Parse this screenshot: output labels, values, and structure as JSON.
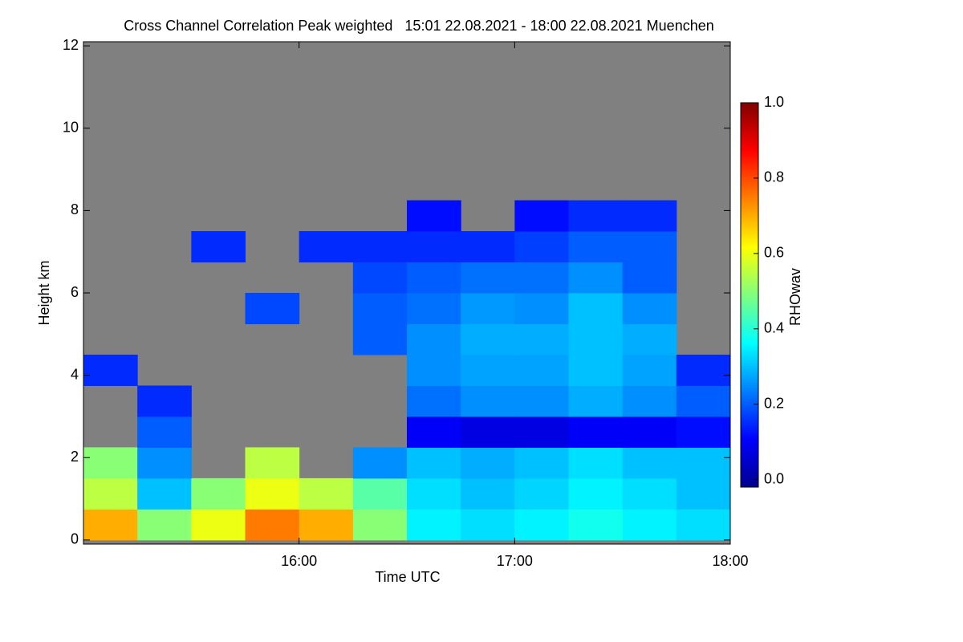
{
  "chart_data": {
    "type": "heatmap",
    "title": "Cross Channel Correlation Peak weighted   15:01 22.08.2021 - 18:00 22.08.2021 Muenchen",
    "x_label": "Time UTC",
    "y_label": "Height km",
    "colorbar_label": "RHOwav",
    "x": [
      15,
      15.25,
      15.5,
      15.75,
      16,
      16.25,
      16.5,
      16.75,
      17,
      17.25,
      17.5,
      17.75,
      18
    ],
    "y": [
      0,
      0.75,
      1.5,
      2.25,
      3,
      3.75,
      4.5,
      5.25,
      6,
      6.75,
      7.5,
      8.25,
      9,
      9.75,
      10.5,
      11.25,
      12
    ],
    "z": [
      [
        0.7,
        0.5,
        0.6,
        0.75,
        0.7,
        0.5,
        0.35,
        0.33,
        0.35,
        0.38,
        0.35,
        0.33
      ],
      [
        0.55,
        0.3,
        0.5,
        0.6,
        0.55,
        0.45,
        0.33,
        0.3,
        0.32,
        0.35,
        0.33,
        0.3
      ],
      [
        0.5,
        0.25,
        null,
        0.55,
        null,
        0.25,
        0.3,
        0.28,
        0.3,
        0.33,
        0.3,
        0.3
      ],
      [
        null,
        0.2,
        null,
        null,
        null,
        null,
        0.1,
        0.08,
        0.08,
        0.1,
        0.1,
        0.12
      ],
      [
        null,
        0.15,
        null,
        null,
        null,
        null,
        0.22,
        0.25,
        0.25,
        0.28,
        0.25,
        0.2
      ],
      [
        0.15,
        null,
        null,
        null,
        null,
        null,
        0.25,
        0.27,
        0.27,
        0.3,
        0.27,
        0.15
      ],
      [
        null,
        null,
        null,
        null,
        null,
        0.2,
        0.25,
        0.28,
        0.28,
        0.3,
        0.28,
        null
      ],
      [
        null,
        null,
        null,
        0.18,
        null,
        0.2,
        0.22,
        0.26,
        0.25,
        0.3,
        0.25,
        null
      ],
      [
        null,
        null,
        null,
        null,
        null,
        0.18,
        0.2,
        0.22,
        0.22,
        0.25,
        0.2,
        null
      ],
      [
        null,
        null,
        0.15,
        null,
        0.15,
        0.15,
        0.15,
        0.15,
        0.17,
        0.2,
        0.2,
        null
      ],
      [
        null,
        null,
        null,
        null,
        null,
        null,
        0.12,
        null,
        0.12,
        0.15,
        0.15,
        null
      ],
      [
        null,
        null,
        null,
        null,
        null,
        null,
        null,
        null,
        null,
        null,
        null,
        null
      ],
      [
        null,
        null,
        null,
        null,
        null,
        null,
        null,
        null,
        null,
        null,
        null,
        null
      ],
      [
        null,
        null,
        null,
        null,
        null,
        null,
        null,
        null,
        null,
        null,
        null,
        null
      ],
      [
        null,
        null,
        null,
        null,
        null,
        null,
        null,
        null,
        null,
        null,
        null,
        null
      ],
      [
        null,
        null,
        null,
        null,
        null,
        null,
        null,
        null,
        null,
        null,
        null,
        null
      ]
    ],
    "xlim": [
      15,
      18
    ],
    "ylim": [
      -0.1,
      12.1
    ],
    "zlim": [
      -0.02,
      1.0
    ],
    "xticks": [
      {
        "value": 16,
        "label": "16:00"
      },
      {
        "value": 17,
        "label": "17:00"
      },
      {
        "value": 18,
        "label": "18:00"
      }
    ],
    "yticks": [
      0,
      2,
      4,
      6,
      8,
      10,
      12
    ],
    "zticks": [
      {
        "value": 0,
        "label": "0.0"
      },
      {
        "value": 0.2,
        "label": "0.2"
      },
      {
        "value": 0.4,
        "label": "0.4"
      },
      {
        "value": 0.6,
        "label": "0.6"
      },
      {
        "value": 0.8,
        "label": "0.8"
      },
      {
        "value": 1.0,
        "label": "1.0"
      }
    ],
    "colormap": "jet",
    "missing_color": "#808080"
  }
}
